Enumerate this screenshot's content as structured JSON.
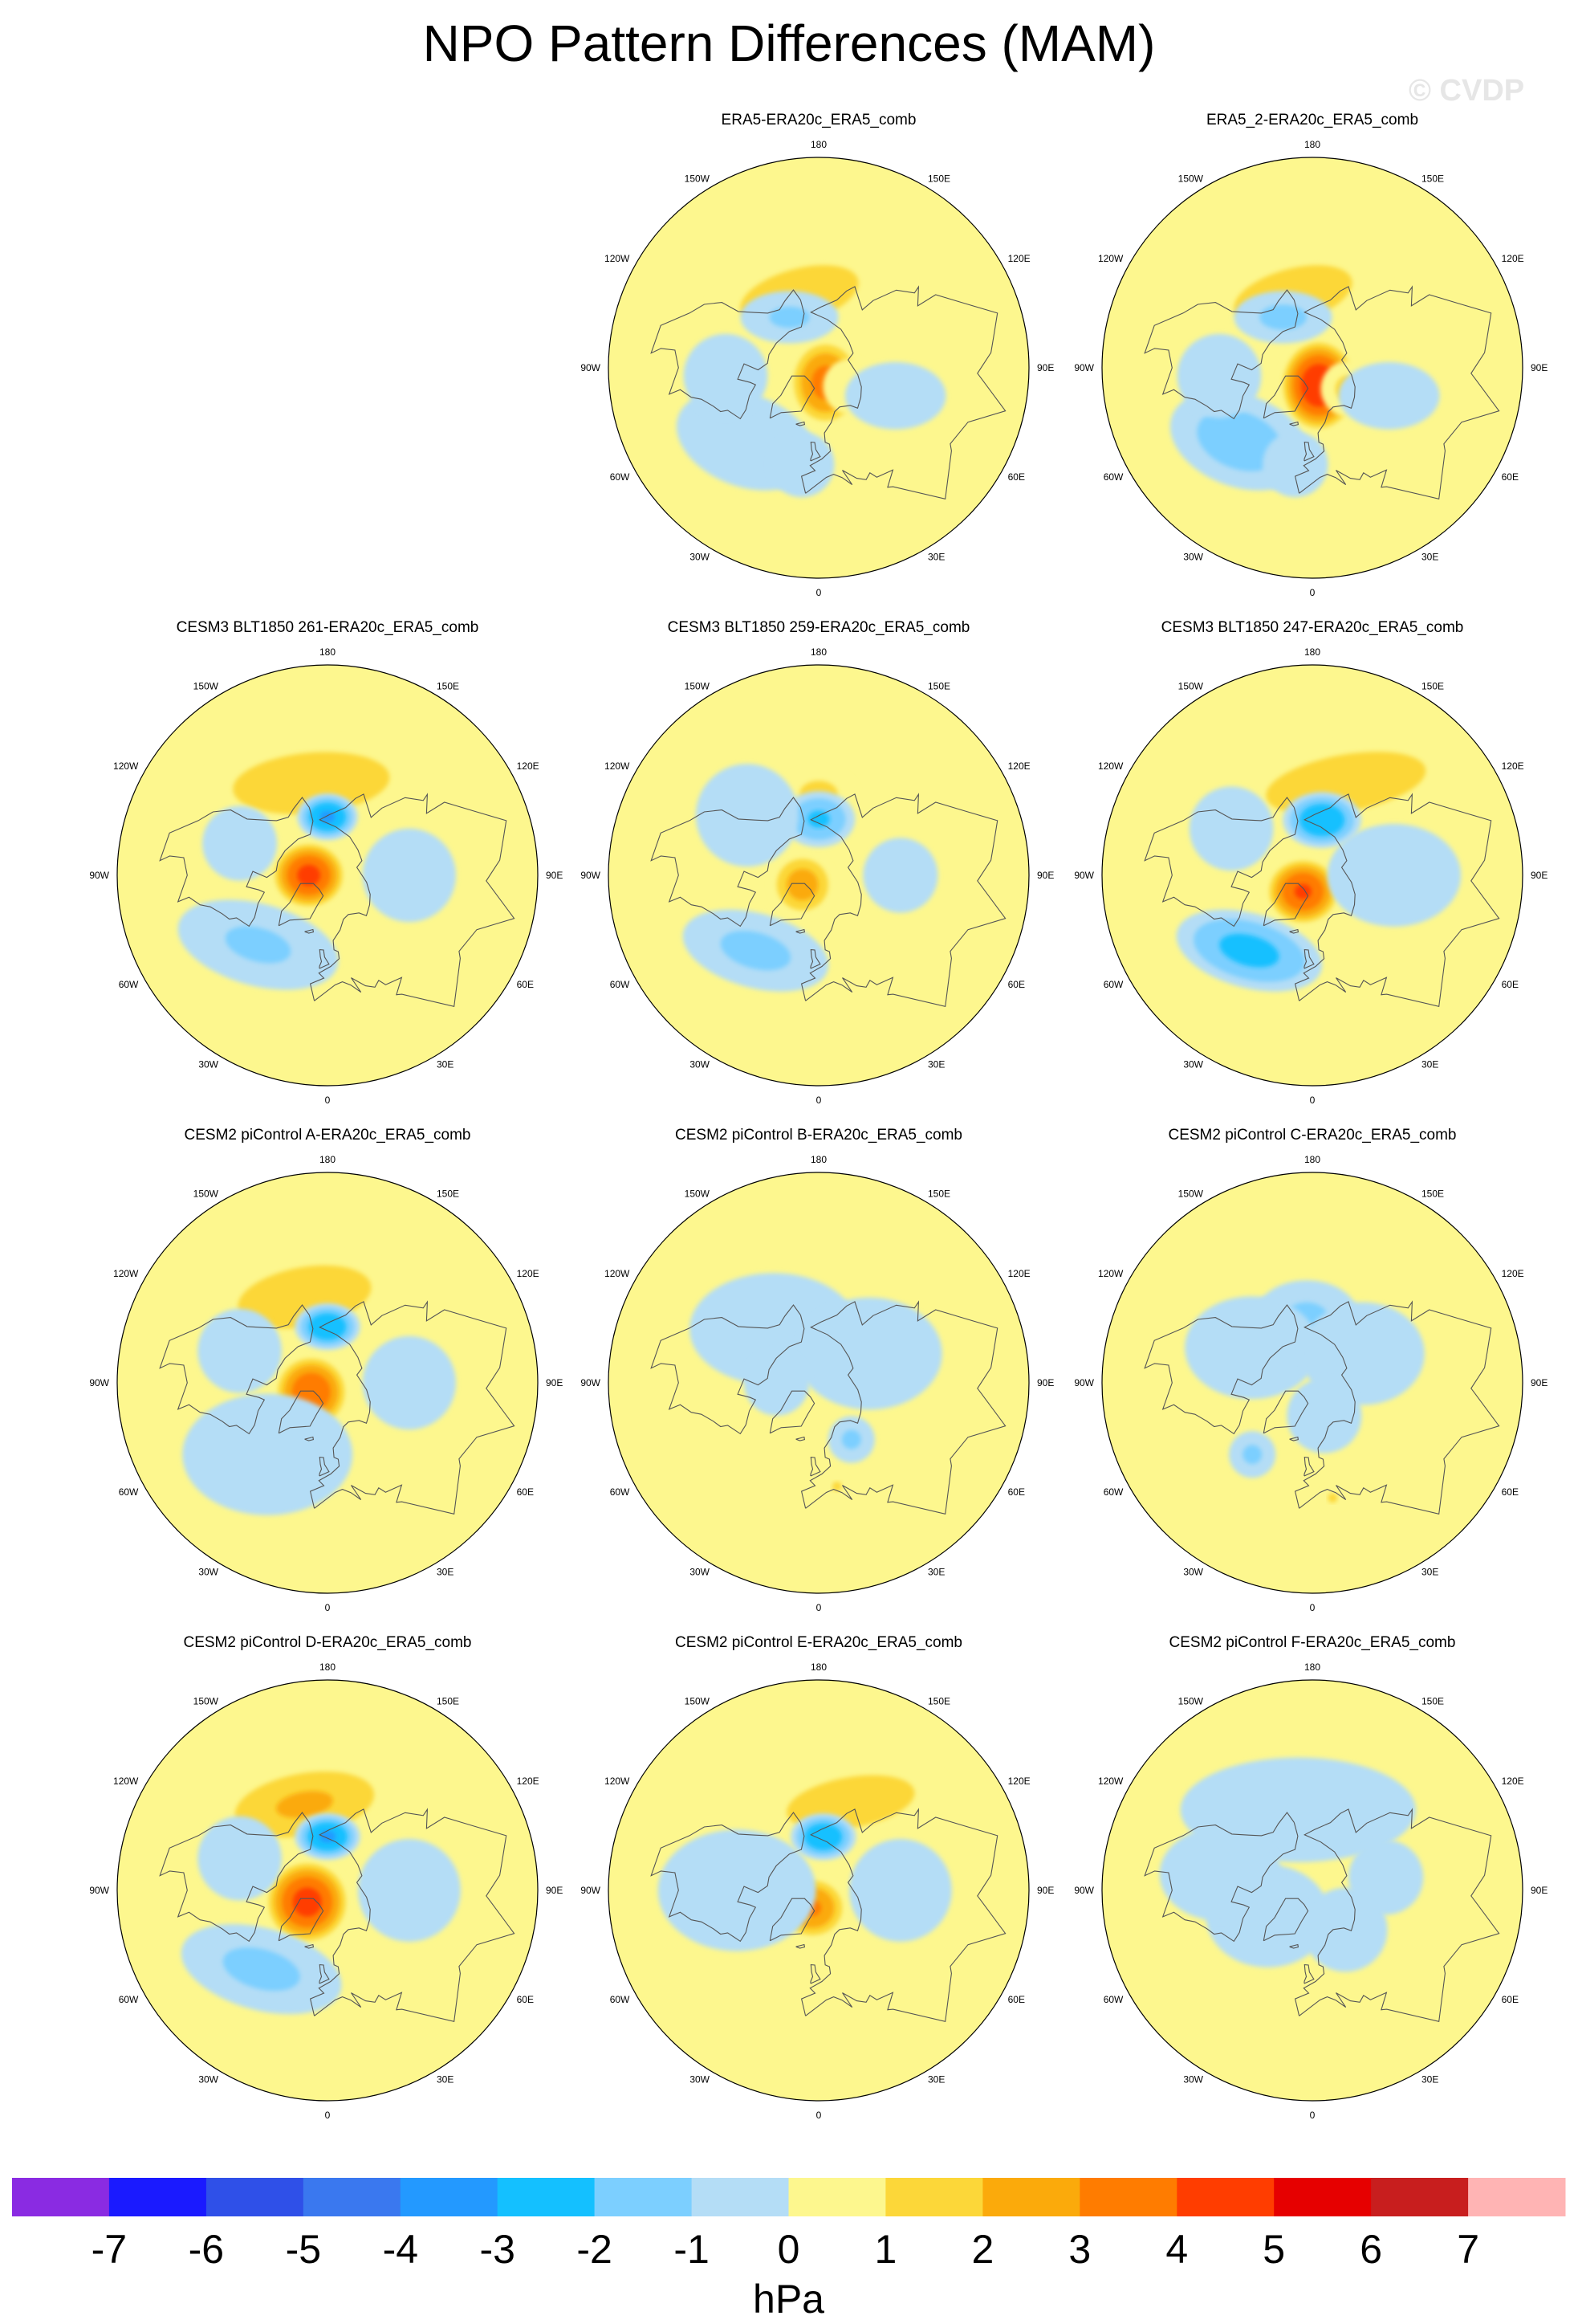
{
  "title": "NPO Pattern Differences (MAM)",
  "watermark": "© CVDP",
  "lon_labels": [
    "180",
    "150E",
    "120E",
    "90E",
    "60E",
    "30E",
    "0",
    "30W",
    "60W",
    "90W",
    "120W",
    "150W"
  ],
  "colorbar": {
    "levels": [
      "-7",
      "-6",
      "-5",
      "-4",
      "-3",
      "-2",
      "-1",
      "0",
      "1",
      "2",
      "3",
      "4",
      "5",
      "6",
      "7"
    ],
    "colors": [
      "#8a2be2",
      "#1a1aff",
      "#2f50e8",
      "#3a78ef",
      "#2399ff",
      "#14c0ff",
      "#7ccfff",
      "#b4ddf6",
      "#fdf78e",
      "#fcd739",
      "#fbaa0b",
      "#ff7c00",
      "#ff3d00",
      "#e60000",
      "#c81e1e",
      "#ffb4b4"
    ],
    "unit": "hPa"
  },
  "panels": [
    {
      "title": "ERA5-ERA20c_ERA5_comb",
      "features": [
        {
          "v": 1.6,
          "lat": 58,
          "lon": 195,
          "r": 25,
          "sx": 1.7,
          "sy": 0.75,
          "rot": -15
        },
        {
          "v": 3.5,
          "lat": 83,
          "lon": 25,
          "r": 16,
          "sx": 1.0,
          "sy": 1.2,
          "rot": 0
        },
        {
          "v": 1.0,
          "lat": 74,
          "lon": 60,
          "r": 12,
          "sx": 1.0,
          "sy": 1.0,
          "rot": 0
        },
        {
          "v": -1.2,
          "lat": 65,
          "lon": 210,
          "r": 14,
          "sx": 1.5,
          "sy": 0.8,
          "rot": 0
        },
        {
          "v": -1.0,
          "lat": 46,
          "lon": 315,
          "r": 22,
          "sx": 1.4,
          "sy": 0.9,
          "rot": 20
        },
        {
          "v": -0.7,
          "lat": 50,
          "lon": 275,
          "r": 18,
          "sx": 1.0,
          "sy": 1.0,
          "rot": 0
        },
        {
          "v": -0.8,
          "lat": 55,
          "lon": 70,
          "r": 18,
          "sx": 1.2,
          "sy": 0.8,
          "rot": 0
        },
        {
          "v": -0.7,
          "lat": 48,
          "lon": 350,
          "r": 14,
          "sx": 1.0,
          "sy": 1.0,
          "rot": 0
        }
      ]
    },
    {
      "title": "ERA5_2-ERA20c_ERA5_comb",
      "features": [
        {
          "v": 1.6,
          "lat": 58,
          "lon": 195,
          "r": 25,
          "sx": 1.7,
          "sy": 0.75,
          "rot": -15
        },
        {
          "v": 5.0,
          "lat": 82,
          "lon": 20,
          "r": 17,
          "sx": 1.0,
          "sy": 1.2,
          "rot": 0
        },
        {
          "v": 1.3,
          "lat": 72,
          "lon": 60,
          "r": 12,
          "sx": 1.0,
          "sy": 1.0,
          "rot": 0
        },
        {
          "v": -1.3,
          "lat": 65,
          "lon": 210,
          "r": 14,
          "sx": 1.5,
          "sy": 0.8,
          "rot": 0
        },
        {
          "v": -1.6,
          "lat": 46,
          "lon": 315,
          "r": 22,
          "sx": 1.4,
          "sy": 0.9,
          "rot": 20
        },
        {
          "v": -0.7,
          "lat": 50,
          "lon": 275,
          "r": 18,
          "sx": 1.0,
          "sy": 1.0,
          "rot": 0
        },
        {
          "v": -0.8,
          "lat": 55,
          "lon": 70,
          "r": 18,
          "sx": 1.2,
          "sy": 0.8,
          "rot": 0
        },
        {
          "v": -0.7,
          "lat": 48,
          "lon": 350,
          "r": 14,
          "sx": 1.0,
          "sy": 1.0,
          "rot": 0
        }
      ]
    },
    {
      "title": "CESM3 BLT1850 261-ERA20c_ERA5_comb",
      "features": [
        {
          "v": 1.8,
          "lat": 50,
          "lon": 190,
          "r": 28,
          "sx": 1.8,
          "sy": 0.7,
          "rot": -5
        },
        {
          "v": -3.2,
          "lat": 65,
          "lon": 180,
          "r": 10,
          "sx": 1.3,
          "sy": 1.0,
          "rot": 0
        },
        {
          "v": 4.4,
          "lat": 82,
          "lon": 270,
          "r": 15,
          "sx": 1.1,
          "sy": 1.0,
          "rot": 0
        },
        {
          "v": -1.2,
          "lat": 48,
          "lon": 315,
          "r": 22,
          "sx": 1.6,
          "sy": 0.8,
          "rot": 15
        },
        {
          "v": -0.8,
          "lat": 55,
          "lon": 90,
          "r": 20,
          "sx": 1.0,
          "sy": 1.0,
          "rot": 0
        },
        {
          "v": -0.7,
          "lat": 50,
          "lon": 250,
          "r": 16,
          "sx": 1.0,
          "sy": 1.0,
          "rot": 0
        }
      ]
    },
    {
      "title": "CESM3 BLT1850 259-ERA20c_ERA5_comb",
      "features": [
        {
          "v": 1.3,
          "lat": 55,
          "lon": 180,
          "r": 14,
          "sx": 1.2,
          "sy": 0.8,
          "rot": 0
        },
        {
          "v": -2.2,
          "lat": 66,
          "lon": 180,
          "r": 12,
          "sx": 1.3,
          "sy": 1.0,
          "rot": 0
        },
        {
          "v": 2.6,
          "lat": 82,
          "lon": 300,
          "r": 14,
          "sx": 1.0,
          "sy": 1.0,
          "rot": 0
        },
        {
          "v": -1.3,
          "lat": 48,
          "lon": 320,
          "r": 20,
          "sx": 1.6,
          "sy": 0.8,
          "rot": 15
        },
        {
          "v": -0.7,
          "lat": 50,
          "lon": 230,
          "r": 22,
          "sx": 1.0,
          "sy": 1.0,
          "rot": 0
        },
        {
          "v": -0.7,
          "lat": 55,
          "lon": 90,
          "r": 16,
          "sx": 1.0,
          "sy": 1.0,
          "rot": 0
        }
      ]
    },
    {
      "title": "CESM3 BLT1850 247-ERA20c_ERA5_comb",
      "features": [
        {
          "v": 1.5,
          "lat": 48,
          "lon": 160,
          "r": 30,
          "sx": 2.0,
          "sy": 0.7,
          "rot": -10
        },
        {
          "v": -3.0,
          "lat": 66,
          "lon": 170,
          "r": 12,
          "sx": 1.4,
          "sy": 1.0,
          "rot": 0
        },
        {
          "v": 4.2,
          "lat": 82,
          "lon": 330,
          "r": 15,
          "sx": 1.1,
          "sy": 1.0,
          "rot": 0
        },
        {
          "v": -2.4,
          "lat": 48,
          "lon": 320,
          "r": 20,
          "sx": 1.6,
          "sy": 0.8,
          "rot": 15
        },
        {
          "v": -0.8,
          "lat": 55,
          "lon": 90,
          "r": 22,
          "sx": 1.3,
          "sy": 1.0,
          "rot": 0
        },
        {
          "v": -0.7,
          "lat": 50,
          "lon": 240,
          "r": 18,
          "sx": 1.0,
          "sy": 1.0,
          "rot": 0
        }
      ]
    },
    {
      "title": "CESM2 piControl A-ERA20c_ERA5_comb",
      "features": [
        {
          "v": 2.0,
          "lat": 52,
          "lon": 195,
          "r": 24,
          "sx": 1.7,
          "sy": 0.75,
          "rot": -10
        },
        {
          "v": -3.0,
          "lat": 66,
          "lon": 180,
          "r": 10,
          "sx": 1.4,
          "sy": 1.0,
          "rot": 0
        },
        {
          "v": 4.0,
          "lat": 82,
          "lon": 300,
          "r": 15,
          "sx": 1.1,
          "sy": 1.1,
          "rot": 0
        },
        {
          "v": -0.9,
          "lat": 50,
          "lon": 320,
          "r": 26,
          "sx": 1.4,
          "sy": 1.0,
          "rot": 0
        },
        {
          "v": -0.7,
          "lat": 55,
          "lon": 90,
          "r": 20,
          "sx": 1.0,
          "sy": 1.0,
          "rot": 0
        },
        {
          "v": -0.7,
          "lat": 50,
          "lon": 250,
          "r": 18,
          "sx": 1.0,
          "sy": 1.0,
          "rot": 0
        }
      ]
    },
    {
      "title": "CESM2 piControl B-ERA20c_ERA5_comb",
      "features": [
        {
          "v": -2.4,
          "lat": 66,
          "lon": 180,
          "r": 11,
          "sx": 1.2,
          "sy": 1.0,
          "rot": 0
        },
        {
          "v": -0.8,
          "lat": 60,
          "lon": 220,
          "r": 24,
          "sx": 1.5,
          "sy": 1.0,
          "rot": 0
        },
        {
          "v": -0.8,
          "lat": 65,
          "lon": 120,
          "r": 24,
          "sx": 1.3,
          "sy": 1.0,
          "rot": 0
        },
        {
          "v": -1.2,
          "lat": 62,
          "lon": 30,
          "r": 10,
          "sx": 1.0,
          "sy": 1.0,
          "rot": 0
        },
        {
          "v": -0.7,
          "lat": 72,
          "lon": 270,
          "r": 14,
          "sx": 1.0,
          "sy": 1.0,
          "rot": 0
        },
        {
          "v": 1.2,
          "lat": 45,
          "lon": 10,
          "r": 5,
          "sx": 1.0,
          "sy": 1.0,
          "rot": 0
        }
      ]
    },
    {
      "title": "CESM2 piControl C-ERA20c_ERA5_comb",
      "features": [
        {
          "v": -1.2,
          "lat": 62,
          "lon": 185,
          "r": 16,
          "sx": 1.4,
          "sy": 1.0,
          "rot": 0
        },
        {
          "v": -0.8,
          "lat": 60,
          "lon": 240,
          "r": 22,
          "sx": 1.3,
          "sy": 1.0,
          "rot": 0
        },
        {
          "v": -0.8,
          "lat": 65,
          "lon": 120,
          "r": 22,
          "sx": 1.2,
          "sy": 1.0,
          "rot": 0
        },
        {
          "v": -1.2,
          "lat": 50,
          "lon": 320,
          "r": 10,
          "sx": 1.0,
          "sy": 1.0,
          "rot": 0
        },
        {
          "v": -0.7,
          "lat": 75,
          "lon": 20,
          "r": 16,
          "sx": 1.0,
          "sy": 1.0,
          "rot": 0
        },
        {
          "v": 1.2,
          "lat": 40,
          "lon": 10,
          "r": 5,
          "sx": 1.0,
          "sy": 1.0,
          "rot": 0
        }
      ]
    },
    {
      "title": "CESM2 piControl D-ERA20c_ERA5_comb",
      "features": [
        {
          "v": 2.2,
          "lat": 52,
          "lon": 195,
          "r": 24,
          "sx": 1.7,
          "sy": 0.75,
          "rot": -10
        },
        {
          "v": -3.2,
          "lat": 67,
          "lon": 180,
          "r": 10,
          "sx": 1.4,
          "sy": 1.0,
          "rot": 0
        },
        {
          "v": 4.5,
          "lat": 80,
          "lon": 300,
          "r": 17,
          "sx": 1.1,
          "sy": 1.1,
          "rot": 0
        },
        {
          "v": -1.3,
          "lat": 46,
          "lon": 320,
          "r": 22,
          "sx": 1.6,
          "sy": 0.8,
          "rot": 15
        },
        {
          "v": -0.8,
          "lat": 55,
          "lon": 90,
          "r": 22,
          "sx": 1.0,
          "sy": 1.0,
          "rot": 0
        },
        {
          "v": -0.7,
          "lat": 50,
          "lon": 250,
          "r": 18,
          "sx": 1.0,
          "sy": 1.0,
          "rot": 0
        }
      ]
    },
    {
      "title": "CESM2 piControl E-ERA20c_ERA5_comb",
      "features": [
        {
          "v": 1.7,
          "lat": 50,
          "lon": 160,
          "r": 24,
          "sx": 1.8,
          "sy": 0.7,
          "rot": -10
        },
        {
          "v": -3.0,
          "lat": 67,
          "lon": 175,
          "r": 10,
          "sx": 1.4,
          "sy": 1.0,
          "rot": 0
        },
        {
          "v": 3.2,
          "lat": 82,
          "lon": 340,
          "r": 14,
          "sx": 1.1,
          "sy": 1.0,
          "rot": 0
        },
        {
          "v": -0.8,
          "lat": 55,
          "lon": 270,
          "r": 26,
          "sx": 1.3,
          "sy": 1.0,
          "rot": 0
        },
        {
          "v": -0.8,
          "lat": 55,
          "lon": 90,
          "r": 22,
          "sx": 1.0,
          "sy": 1.0,
          "rot": 0
        },
        {
          "v": 1.3,
          "lat": 50,
          "lon": 80,
          "r": 4,
          "sx": 1.0,
          "sy": 1.0,
          "rot": 0
        }
      ]
    },
    {
      "title": "CESM2 piControl F-ERA20c_ERA5_comb",
      "features": [
        {
          "v": -0.9,
          "lat": 55,
          "lon": 190,
          "r": 28,
          "sx": 1.8,
          "sy": 0.8,
          "rot": 0
        },
        {
          "v": -0.9,
          "lat": 68,
          "lon": 300,
          "r": 22,
          "sx": 1.2,
          "sy": 1.0,
          "rot": 0
        },
        {
          "v": -0.8,
          "lat": 50,
          "lon": 260,
          "r": 20,
          "sx": 1.3,
          "sy": 1.0,
          "rot": 0
        },
        {
          "v": -0.8,
          "lat": 68,
          "lon": 40,
          "r": 18,
          "sx": 1.0,
          "sy": 1.0,
          "rot": 0
        },
        {
          "v": -0.6,
          "lat": 58,
          "lon": 100,
          "r": 16,
          "sx": 1.0,
          "sy": 1.0,
          "rot": 0
        }
      ]
    }
  ]
}
